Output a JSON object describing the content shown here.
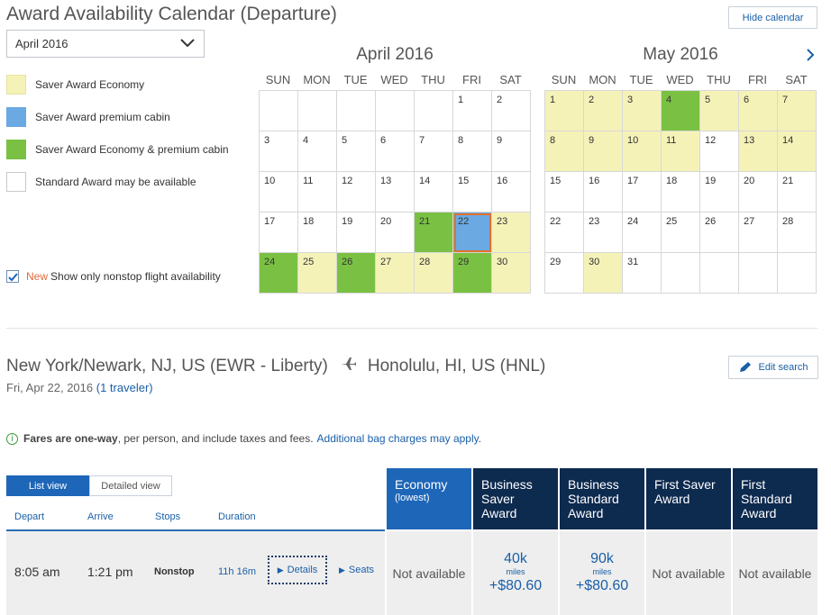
{
  "header": {
    "title": "Award Availability Calendar (Departure)",
    "hide_calendar_label": "Hide calendar",
    "month_select_value": "April 2016"
  },
  "legend": [
    {
      "label": "Saver Award Economy",
      "color": "#f5f2b8"
    },
    {
      "label": "Saver Award premium cabin",
      "color": "#6aa9e2"
    },
    {
      "label": "Saver Award Economy & premium cabin",
      "color": "#7ac143"
    },
    {
      "label": "Standard Award may be available",
      "color": "#ffffff"
    }
  ],
  "nonstop": {
    "new_tag": "New",
    "label": "Show only nonstop flight availability",
    "checked": true
  },
  "weekdays": [
    "SUN",
    "MON",
    "TUE",
    "WED",
    "THU",
    "FRI",
    "SAT"
  ],
  "calendars": [
    {
      "title": "April 2016",
      "weeks": [
        [
          {
            "d": ""
          },
          {
            "d": ""
          },
          {
            "d": ""
          },
          {
            "d": ""
          },
          {
            "d": ""
          },
          {
            "d": "1"
          },
          {
            "d": "2"
          }
        ],
        [
          {
            "d": "3"
          },
          {
            "d": "4"
          },
          {
            "d": "5"
          },
          {
            "d": "6"
          },
          {
            "d": "7"
          },
          {
            "d": "8"
          },
          {
            "d": "9"
          }
        ],
        [
          {
            "d": "10"
          },
          {
            "d": "11"
          },
          {
            "d": "12"
          },
          {
            "d": "13"
          },
          {
            "d": "14"
          },
          {
            "d": "15"
          },
          {
            "d": "16"
          }
        ],
        [
          {
            "d": "17"
          },
          {
            "d": "18"
          },
          {
            "d": "19"
          },
          {
            "d": "20"
          },
          {
            "d": "21",
            "s": "green"
          },
          {
            "d": "22",
            "s": "blue",
            "sel": true
          },
          {
            "d": "23",
            "s": "yellow"
          }
        ],
        [
          {
            "d": "24",
            "s": "green"
          },
          {
            "d": "25",
            "s": "yellow"
          },
          {
            "d": "26",
            "s": "green"
          },
          {
            "d": "27",
            "s": "yellow"
          },
          {
            "d": "28",
            "s": "yellow"
          },
          {
            "d": "29",
            "s": "green"
          },
          {
            "d": "30",
            "s": "yellow"
          }
        ]
      ]
    },
    {
      "title": "May 2016",
      "weeks": [
        [
          {
            "d": "1",
            "s": "yellow"
          },
          {
            "d": "2",
            "s": "yellow"
          },
          {
            "d": "3",
            "s": "yellow"
          },
          {
            "d": "4",
            "s": "green"
          },
          {
            "d": "5",
            "s": "yellow"
          },
          {
            "d": "6",
            "s": "yellow"
          },
          {
            "d": "7",
            "s": "yellow"
          }
        ],
        [
          {
            "d": "8",
            "s": "yellow"
          },
          {
            "d": "9",
            "s": "yellow"
          },
          {
            "d": "10",
            "s": "yellow"
          },
          {
            "d": "11",
            "s": "yellow"
          },
          {
            "d": "12"
          },
          {
            "d": "13",
            "s": "yellow"
          },
          {
            "d": "14",
            "s": "yellow"
          }
        ],
        [
          {
            "d": "15"
          },
          {
            "d": "16"
          },
          {
            "d": "17"
          },
          {
            "d": "18"
          },
          {
            "d": "19"
          },
          {
            "d": "20"
          },
          {
            "d": "21"
          }
        ],
        [
          {
            "d": "22"
          },
          {
            "d": "23"
          },
          {
            "d": "24"
          },
          {
            "d": "25"
          },
          {
            "d": "26"
          },
          {
            "d": "27"
          },
          {
            "d": "28"
          }
        ],
        [
          {
            "d": "29"
          },
          {
            "d": "30",
            "s": "yellow"
          },
          {
            "d": "31"
          },
          {
            "d": ""
          },
          {
            "d": ""
          },
          {
            "d": ""
          },
          {
            "d": ""
          }
        ]
      ]
    }
  ],
  "route": {
    "origin": "New York/Newark, NJ, US (EWR - Liberty)",
    "destination": "Honolulu, HI, US (HNL)",
    "date": "Fri, Apr 22, 2016",
    "travelers": "(1 traveler)",
    "edit_search_label": "Edit search"
  },
  "fare_note": {
    "bold": "Fares are one-way",
    "rest": ", per person, and include taxes and fees.",
    "link": "Additional bag charges may apply."
  },
  "views": {
    "list": "List view",
    "detailed": "Detailed view"
  },
  "columns": {
    "depart": "Depart",
    "arrive": "Arrive",
    "stops": "Stops",
    "duration": "Duration"
  },
  "cabins": [
    {
      "line1": "Economy",
      "line2": "(lowest)",
      "color": "#1e66b8"
    },
    {
      "line1": "Business Saver Award",
      "color": "#0d2a4f"
    },
    {
      "line1": "Business Standard Award",
      "color": "#0d2a4f"
    },
    {
      "line1": "First Saver Award",
      "color": "#0d2a4f"
    },
    {
      "line1": "First Standard Award",
      "color": "#0d2a4f"
    }
  ],
  "flight": {
    "depart": "8:05 am",
    "arrive": "1:21 pm",
    "stops": "Nonstop",
    "duration": "11h 16m",
    "details_label": "Details",
    "seats_label": "Seats",
    "fares": [
      {
        "type": "na",
        "text": "Not available"
      },
      {
        "type": "miles",
        "miles": "40k",
        "unit": "miles",
        "fee": "+$80.60"
      },
      {
        "type": "miles",
        "miles": "90k",
        "unit": "miles",
        "fee": "+$80.60"
      },
      {
        "type": "na",
        "text": "Not available"
      },
      {
        "type": "na",
        "text": "Not available"
      }
    ]
  }
}
